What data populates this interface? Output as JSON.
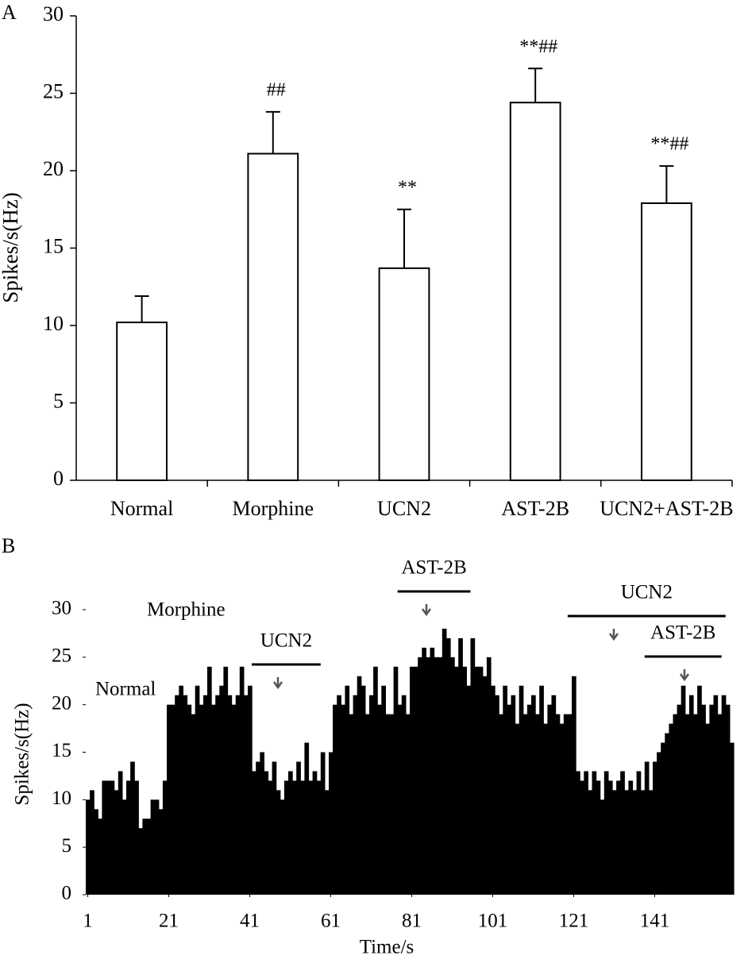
{
  "chart_data": [
    {
      "type": "bar",
      "panel_label": "A",
      "ylabel": "Spikes/s(Hz)",
      "categories": [
        "Normal",
        "Morphine",
        "UCN2",
        "AST-2B",
        "UCN2+AST-2B"
      ],
      "values": [
        10.2,
        21.1,
        13.7,
        24.4,
        17.9
      ],
      "errors": [
        1.7,
        2.7,
        3.8,
        2.2,
        2.4
      ],
      "annotations": [
        null,
        "##",
        "**",
        "**##",
        "**##"
      ],
      "color": "#ffffff",
      "edge_color": "#000000",
      "ylim": [
        0,
        30
      ],
      "yticks": [
        0,
        5,
        10,
        15,
        20,
        25,
        30
      ]
    },
    {
      "type": "histogram",
      "panel_label": "B",
      "ylabel": "Spikes/s(Hz)",
      "xlabel": "Time/s",
      "x": [
        1,
        2,
        3,
        4,
        5,
        6,
        7,
        8,
        9,
        10,
        11,
        12,
        13,
        14,
        15,
        16,
        17,
        18,
        19,
        20,
        21,
        22,
        23,
        24,
        25,
        26,
        27,
        28,
        29,
        30,
        31,
        32,
        33,
        34,
        35,
        36,
        37,
        38,
        39,
        40,
        41,
        42,
        43,
        44,
        45,
        46,
        47,
        48,
        49,
        50,
        51,
        52,
        53,
        54,
        55,
        56,
        57,
        58,
        59,
        60,
        61,
        62,
        63,
        64,
        65,
        66,
        67,
        68,
        69,
        70,
        71,
        72,
        73,
        74,
        75,
        76,
        77,
        78,
        79,
        80,
        81,
        82,
        83,
        84,
        85,
        86,
        87,
        88,
        89,
        90,
        91,
        92,
        93,
        94,
        95,
        96,
        97,
        98,
        99,
        100,
        101,
        102,
        103,
        104,
        105,
        106,
        107,
        108,
        109,
        110,
        111,
        112,
        113,
        114,
        115,
        116,
        117,
        118,
        119,
        120,
        121,
        122,
        123,
        124,
        125,
        126,
        127,
        128,
        129,
        130,
        131,
        132,
        133,
        134,
        135,
        136,
        137,
        138,
        139,
        140,
        141,
        142,
        143,
        144,
        145,
        146,
        147,
        148,
        149,
        150,
        151,
        152,
        153,
        154,
        155,
        156,
        157,
        158,
        159,
        160
      ],
      "values": [
        10,
        11,
        9,
        8,
        12,
        12,
        12,
        11,
        13,
        10,
        12,
        14,
        12,
        7,
        8,
        8,
        10,
        10,
        9,
        12,
        20,
        20,
        21,
        22,
        21,
        20,
        19,
        22,
        20,
        21,
        24,
        20,
        21,
        22,
        24,
        21,
        20,
        21,
        24,
        21,
        22,
        13,
        14,
        15,
        13,
        12,
        14,
        11,
        10,
        12,
        13,
        12,
        14,
        12,
        16,
        12,
        13,
        12,
        15,
        11,
        15,
        20,
        21,
        20,
        22,
        19,
        21,
        23,
        22,
        19,
        21,
        24,
        20,
        22,
        19,
        19,
        24,
        20,
        21,
        19,
        24,
        24,
        25,
        26,
        25,
        26,
        25,
        25,
        28,
        27,
        25,
        24,
        27,
        24,
        22,
        27,
        24,
        24,
        23,
        25,
        22,
        21,
        19,
        22,
        20,
        21,
        18,
        22,
        19,
        20,
        21,
        19,
        22,
        18,
        20,
        21,
        19,
        18,
        19,
        19,
        23,
        13,
        12,
        13,
        11,
        13,
        12,
        10,
        13,
        12,
        11,
        12,
        13,
        11,
        12,
        11,
        13,
        11,
        14,
        11,
        14,
        15,
        16,
        17,
        18,
        19,
        20,
        22,
        19,
        21,
        19,
        22,
        20,
        18,
        20,
        21,
        19,
        21,
        20,
        16
      ],
      "color": "#000000",
      "xlim": [
        1,
        161
      ],
      "ylim": [
        0,
        30
      ],
      "xticks": [
        1,
        21,
        41,
        61,
        81,
        101,
        121,
        141
      ],
      "yticks": [
        0,
        5,
        10,
        15,
        20,
        25,
        30
      ],
      "labels": [
        "Normal",
        "Morphine"
      ],
      "spans": [
        {
          "text": "UCN2",
          "start": 42,
          "end": 59
        },
        {
          "text": "AST-2B",
          "start": 78,
          "end": 96
        },
        {
          "text": "UCN2",
          "start": 120,
          "end": 159
        },
        {
          "text": "AST-2B",
          "start": 139,
          "end": 158
        }
      ]
    }
  ]
}
